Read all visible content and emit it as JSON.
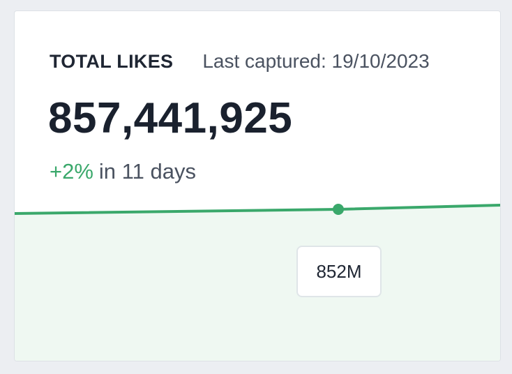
{
  "card": {
    "metric_label": "TOTAL LIKES",
    "last_captured": "Last captured: 19/10/2023",
    "value": "857,441,925",
    "change_pct": "+2%",
    "change_period": "in 11 days",
    "tooltip_value": "852M"
  },
  "colors": {
    "accent_green": "#3aa86b",
    "area_fill": "#eff8f2"
  },
  "chart_data": {
    "type": "area",
    "values": [
      851,
      852,
      853
    ],
    "highlight_index": 1
  }
}
